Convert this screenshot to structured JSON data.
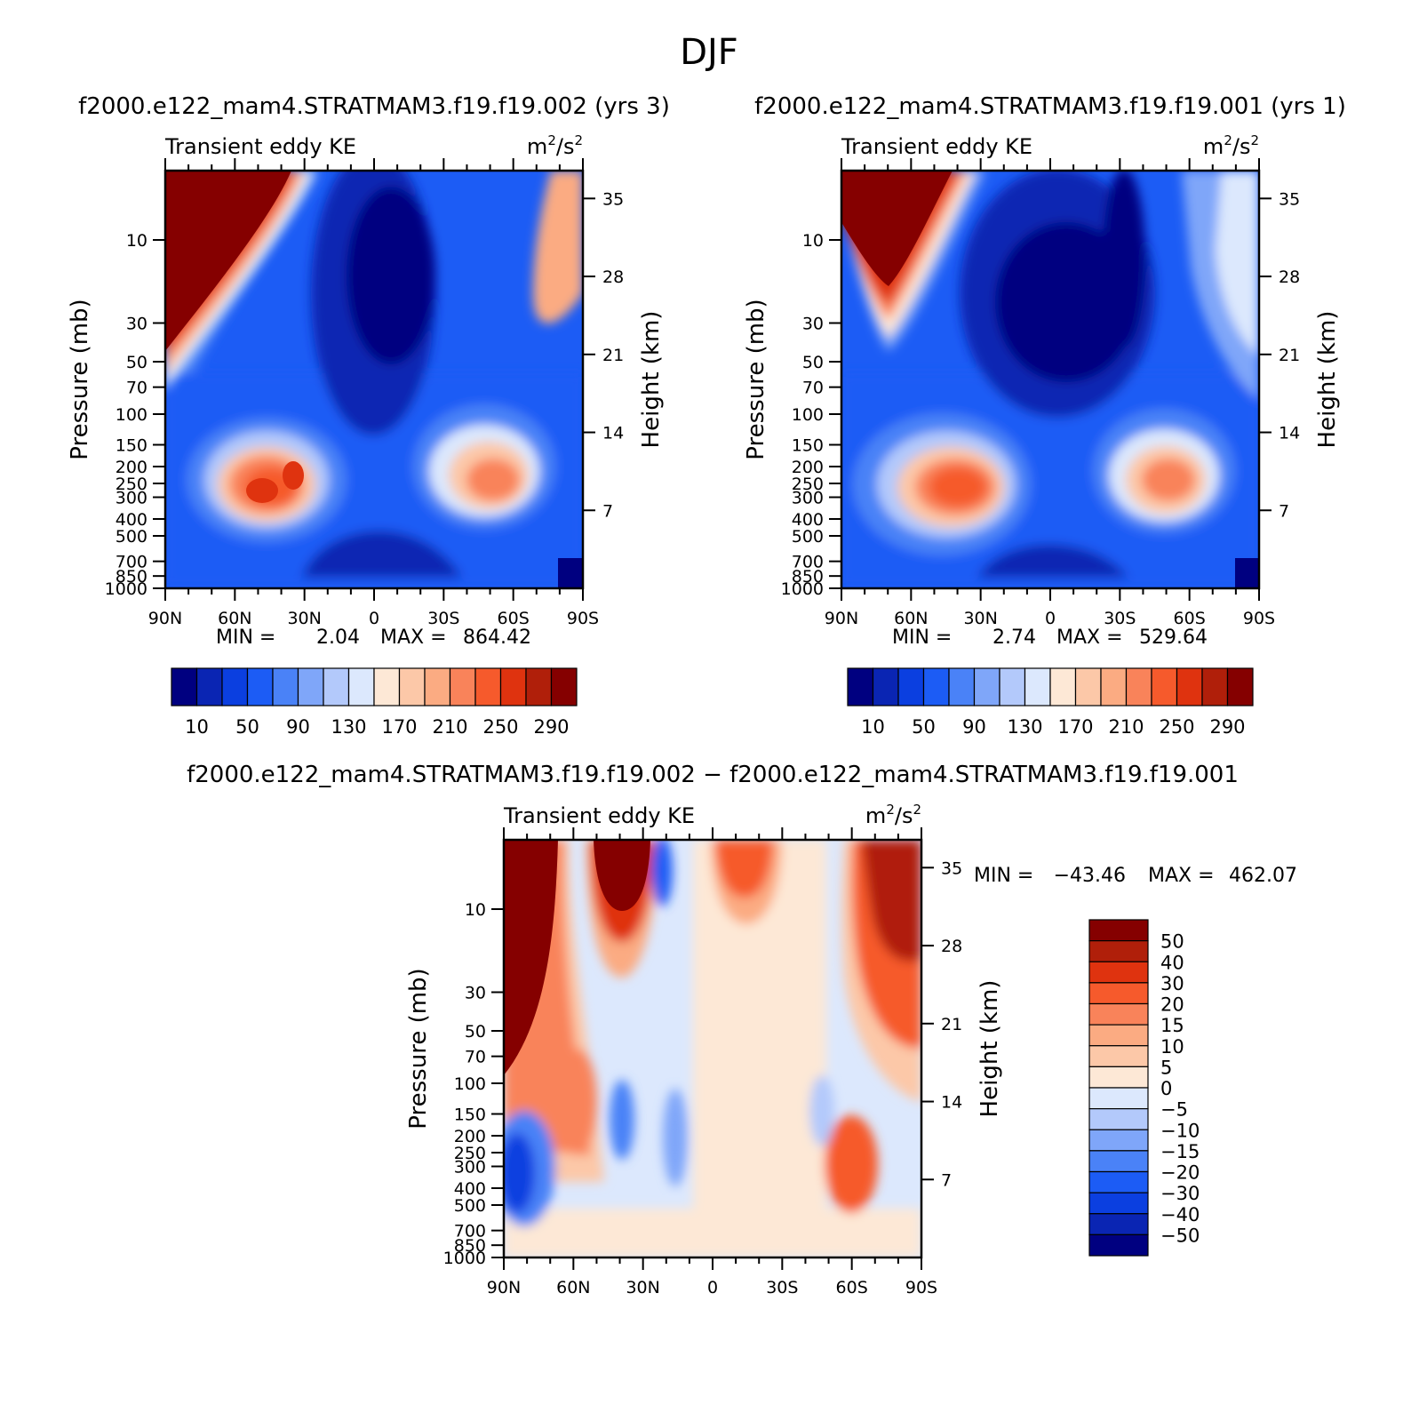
{
  "page_title": "DJF",
  "colors": {
    "ke_levels": [
      "#000080",
      "#0a25b3",
      "#0b3fe0",
      "#1c5cf5",
      "#4a82f7",
      "#7fa6f9",
      "#b3c9fb",
      "#dce8fd",
      "#fde8d6",
      "#fcc8a8",
      "#fbab82",
      "#f9835a",
      "#f65a2c",
      "#df330f",
      "#b01f0a",
      "#850000"
    ],
    "diff_levels": [
      "#000080",
      "#0a25b3",
      "#0b3fe0",
      "#1c5cf5",
      "#4a82f7",
      "#7fa6f9",
      "#b3c9fb",
      "#dce8fd",
      "#fde8d6",
      "#fcc8a8",
      "#fbab82",
      "#f9835a",
      "#f65a2c",
      "#df330f",
      "#b01f0a",
      "#850000"
    ]
  },
  "chart_data": [
    {
      "type": "contour",
      "panel": "test",
      "title": "f2000.e122_mam4.STRATMAM3.f19.f19.002 (yrs 3)",
      "left_label": "Transient eddy KE",
      "right_label": "m²/s²",
      "ylabel": "Pressure (mb)",
      "y2label": "Height (km)",
      "pressure_ticks": [
        "10",
        "30",
        "50",
        "70",
        "100",
        "150",
        "200",
        "250",
        "300",
        "400",
        "500",
        "700",
        "850",
        "1000"
      ],
      "height_ticks": [
        "35",
        "28",
        "21",
        "14",
        "7"
      ],
      "lat_ticks": [
        "90N",
        "60N",
        "30N",
        "0",
        "30S",
        "60S",
        "90S"
      ],
      "min_label": "MIN =",
      "min_value": "2.04",
      "max_label": "MAX =",
      "max_value": "864.42",
      "colorbar_labels": [
        "10",
        "50",
        "90",
        "130",
        "170",
        "210",
        "250",
        "290"
      ],
      "features": [
        {
          "lat": -78,
          "p": 3,
          "value": 864
        },
        {
          "lat": -42,
          "p": 270,
          "value": 300
        },
        {
          "lat": -32,
          "p": 230,
          "value": 300
        },
        {
          "lat": 47,
          "p": 290,
          "value": 260
        },
        {
          "lat": 2,
          "p": 30,
          "value": 2
        }
      ]
    },
    {
      "type": "contour",
      "panel": "control",
      "title": "f2000.e122_mam4.STRATMAM3.f19.f19.001 (yrs 1)",
      "left_label": "Transient eddy KE",
      "right_label": "m²/s²",
      "ylabel": "Pressure (mb)",
      "y2label": "Height (km)",
      "pressure_ticks": [
        "10",
        "30",
        "50",
        "70",
        "100",
        "150",
        "200",
        "250",
        "300",
        "400",
        "500",
        "700",
        "850",
        "1000"
      ],
      "height_ticks": [
        "35",
        "28",
        "21",
        "14",
        "7"
      ],
      "lat_ticks": [
        "90N",
        "60N",
        "30N",
        "0",
        "30S",
        "60S",
        "90S"
      ],
      "min_label": "MIN =",
      "min_value": "2.74",
      "max_label": "MAX =",
      "max_value": "529.64",
      "colorbar_labels": [
        "10",
        "50",
        "90",
        "130",
        "170",
        "210",
        "250",
        "290"
      ],
      "features": [
        {
          "lat": -68,
          "p": 10,
          "value": 529
        },
        {
          "lat": -38,
          "p": 250,
          "value": 280
        },
        {
          "lat": 48,
          "p": 270,
          "value": 250
        },
        {
          "lat": 5,
          "p": 40,
          "value": 2.7
        }
      ]
    },
    {
      "type": "contour",
      "panel": "difference",
      "title": "f2000.e122_mam4.STRATMAM3.f19.f19.002 − f2000.e122_mam4.STRATMAM3.f19.f19.001",
      "left_label": "Transient eddy KE",
      "right_label": "m²/s²",
      "ylabel": "Pressure (mb)",
      "y2label": "Height (km)",
      "pressure_ticks": [
        "10",
        "30",
        "50",
        "70",
        "100",
        "150",
        "200",
        "250",
        "300",
        "400",
        "500",
        "700",
        "850",
        "1000"
      ],
      "height_ticks": [
        "35",
        "28",
        "21",
        "14",
        "7"
      ],
      "lat_ticks": [
        "90N",
        "60N",
        "30N",
        "0",
        "30S",
        "60S",
        "90S"
      ],
      "min_label": "MIN =",
      "min_value": "−43.46",
      "max_label": "MAX =",
      "max_value": "462.07",
      "colorbar_labels": [
        "50",
        "40",
        "30",
        "20",
        "15",
        "10",
        "5",
        "0",
        "−5",
        "−10",
        "−15",
        "−20",
        "−30",
        "−40",
        "−50"
      ],
      "features": [
        {
          "lat": -85,
          "p": 3,
          "value": 462
        },
        {
          "lat": -86,
          "p": 350,
          "value": -43
        },
        {
          "lat": -50,
          "p": 20,
          "value": 50
        },
        {
          "lat": 75,
          "p": 15,
          "value": 50
        },
        {
          "lat": 60,
          "p": 300,
          "value": 40
        },
        {
          "lat": -28,
          "p": 5,
          "value": -30
        }
      ]
    }
  ]
}
